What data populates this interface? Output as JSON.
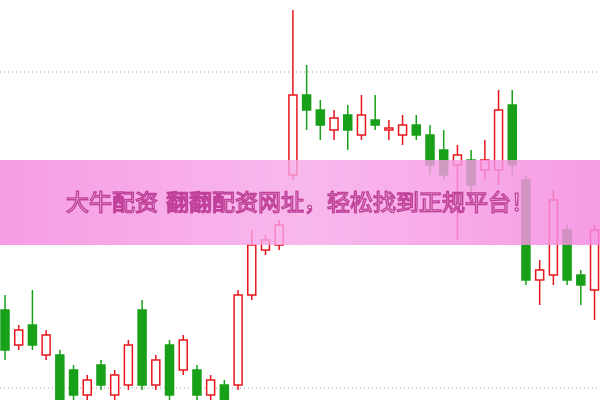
{
  "chart_data": {
    "type": "candlestick",
    "title": "大牛配资 翻翻配资网址，轻松找到正规平台！",
    "ylim": [
      0,
      400
    ],
    "up_color": "#e8141c",
    "down_color": "#18a018",
    "open": [
      90,
      55,
      75,
      45,
      45,
      30,
      5,
      35,
      5,
      15,
      90,
      15,
      55,
      30,
      30,
      5,
      15,
      15,
      105,
      150,
      155,
      225,
      305,
      290,
      270,
      285,
      265,
      280,
      270,
      265,
      275,
      265,
      250,
      235,
      240,
      230,
      230,
      295,
      220,
      120,
      125,
      170,
      125,
      110
    ],
    "high": [
      105,
      75,
      110,
      70,
      50,
      35,
      25,
      40,
      30,
      60,
      100,
      45,
      60,
      65,
      35,
      25,
      20,
      110,
      170,
      165,
      180,
      390,
      335,
      300,
      290,
      295,
      305,
      305,
      280,
      285,
      285,
      275,
      270,
      255,
      250,
      260,
      310,
      310,
      225,
      140,
      210,
      175,
      130,
      175
    ],
    "low": [
      40,
      50,
      50,
      40,
      0,
      0,
      0,
      10,
      0,
      10,
      10,
      10,
      0,
      25,
      0,
      0,
      0,
      10,
      100,
      145,
      150,
      220,
      270,
      260,
      260,
      250,
      260,
      270,
      260,
      255,
      260,
      225,
      220,
      160,
      205,
      220,
      215,
      225,
      115,
      95,
      115,
      115,
      95,
      80
    ],
    "close": [
      50,
      70,
      55,
      65,
      0,
      5,
      20,
      15,
      25,
      55,
      15,
      40,
      5,
      60,
      5,
      20,
      0,
      105,
      155,
      160,
      175,
      305,
      290,
      275,
      282,
      270,
      285,
      275,
      272,
      275,
      265,
      235,
      225,
      245,
      215,
      240,
      290,
      235,
      120,
      130,
      200,
      120,
      115,
      170
    ]
  }
}
